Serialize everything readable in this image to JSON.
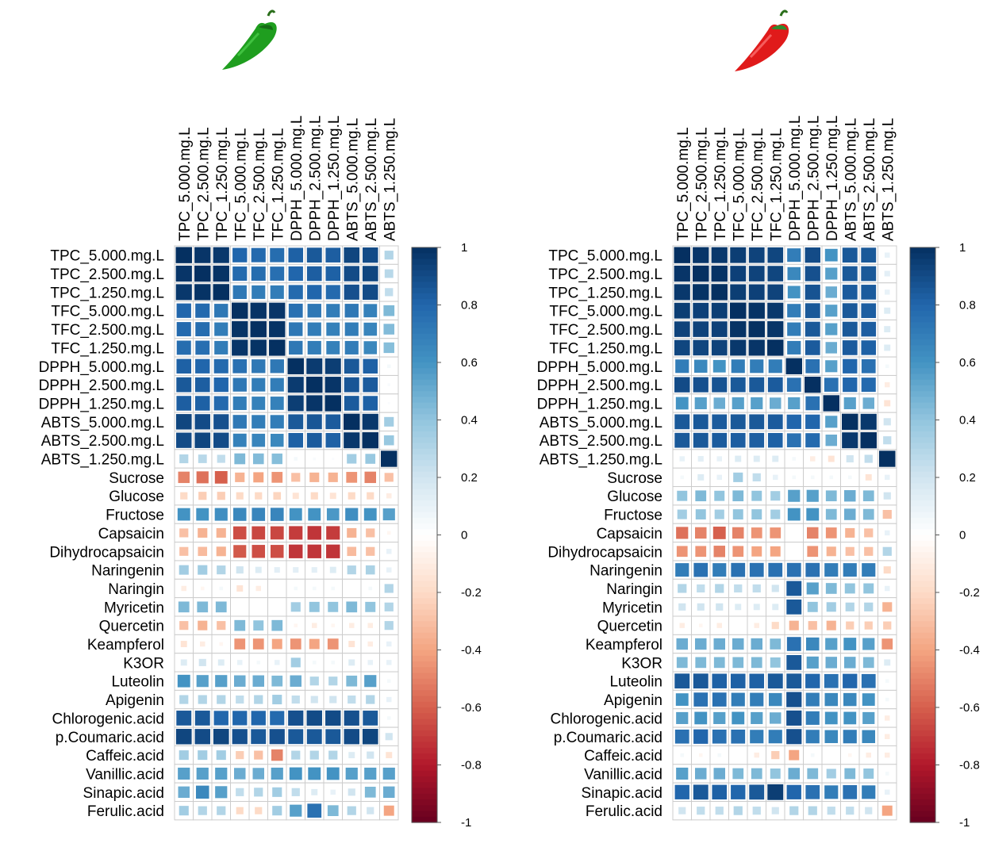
{
  "colors": {
    "scale": [
      "#67001F",
      "#B2182B",
      "#D6604D",
      "#F4A582",
      "#FDDBC7",
      "#FFFFFF",
      "#D1E5F0",
      "#92C5DE",
      "#4393C3",
      "#2166AC",
      "#053061"
    ],
    "green_pepper": "#1f9e1f",
    "red_pepper": "#e01a1a",
    "grid": "#cccccc"
  },
  "icons": [
    "green-pepper-icon",
    "red-pepper-icon"
  ],
  "chart_data": [
    {
      "type": "heatmap",
      "columns": [
        "TPC_5.000.mg.L",
        "TPC_2.500.mg.L",
        "TPC_1.250.mg.L",
        "TFC_5.000.mg.L",
        "TFC_2.500.mg.L",
        "TFC_1.250.mg.L",
        "DPPH_5.000.mg.L",
        "DPPH_2.500.mg.L",
        "DPPH_1.250.mg.L",
        "ABTS_5.000.mg.L",
        "ABTS_2.500.mg.L",
        "ABTS_1.250.mg.L"
      ],
      "rows": [
        "TPC_5.000.mg.L",
        "TPC_2.500.mg.L",
        "TPC_1.250.mg.L",
        "TFC_5.000.mg.L",
        "TFC_2.500.mg.L",
        "TFC_1.250.mg.L",
        "DPPH_5.000.mg.L",
        "DPPH_2.500.mg.L",
        "DPPH_1.250.mg.L",
        "ABTS_5.000.mg.L",
        "ABTS_2.500.mg.L",
        "ABTS_1.250.mg.L",
        "Sucrose",
        "Glucose",
        "Fructose",
        "Capsaicin",
        "Dihydrocapsaicin",
        "Naringenin",
        "Naringin",
        "Myricetin",
        "Quercetin",
        "Keampferol",
        "K3OR",
        "Luteolin",
        "Apigenin",
        "Chlorogenic.acid",
        "p.Coumaric.acid",
        "Caffeic.acid",
        "Vanillic.acid",
        "Sinapic.acid",
        "Ferulic.acid"
      ],
      "values": [
        [
          1,
          0.98,
          0.97,
          0.8,
          0.78,
          0.77,
          0.82,
          0.85,
          0.83,
          0.92,
          0.9,
          0.3
        ],
        [
          0.98,
          1,
          0.99,
          0.78,
          0.77,
          0.76,
          0.8,
          0.83,
          0.82,
          0.9,
          0.92,
          0.28
        ],
        [
          0.97,
          0.99,
          1,
          0.72,
          0.7,
          0.7,
          0.78,
          0.8,
          0.78,
          0.88,
          0.9,
          0.25
        ],
        [
          0.8,
          0.78,
          0.72,
          1,
          0.99,
          0.98,
          0.75,
          0.72,
          0.7,
          0.72,
          0.68,
          0.45
        ],
        [
          0.78,
          0.77,
          0.7,
          0.99,
          1,
          0.99,
          0.72,
          0.7,
          0.68,
          0.7,
          0.66,
          0.44
        ],
        [
          0.77,
          0.76,
          0.7,
          0.98,
          0.99,
          1,
          0.72,
          0.7,
          0.68,
          0.7,
          0.65,
          0.43
        ],
        [
          0.82,
          0.8,
          0.78,
          0.75,
          0.72,
          0.72,
          1,
          0.96,
          0.95,
          0.85,
          0.82,
          0.05
        ],
        [
          0.85,
          0.83,
          0.8,
          0.72,
          0.7,
          0.7,
          0.96,
          1,
          0.98,
          0.86,
          0.84,
          0.03
        ],
        [
          0.83,
          0.82,
          0.78,
          0.7,
          0.68,
          0.68,
          0.95,
          0.98,
          1,
          0.84,
          0.82,
          0.02
        ],
        [
          0.92,
          0.9,
          0.88,
          0.72,
          0.7,
          0.7,
          0.85,
          0.86,
          0.84,
          1,
          0.97,
          0.35
        ],
        [
          0.9,
          0.92,
          0.9,
          0.68,
          0.66,
          0.65,
          0.82,
          0.84,
          0.82,
          0.97,
          1,
          0.38
        ],
        [
          0.3,
          0.28,
          0.25,
          0.45,
          0.44,
          0.43,
          0.05,
          0.03,
          0.02,
          0.35,
          0.38,
          1
        ],
        [
          -0.5,
          -0.55,
          -0.6,
          -0.35,
          -0.4,
          -0.45,
          -0.3,
          -0.35,
          -0.35,
          -0.45,
          -0.5,
          -0.3
        ],
        [
          -0.2,
          -0.25,
          -0.25,
          -0.2,
          -0.2,
          -0.22,
          -0.15,
          -0.2,
          -0.15,
          -0.2,
          -0.2,
          -0.1
        ],
        [
          0.6,
          0.6,
          0.62,
          0.65,
          0.66,
          0.66,
          0.6,
          0.6,
          0.58,
          0.62,
          0.6,
          0.55
        ],
        [
          -0.3,
          -0.35,
          -0.35,
          -0.65,
          -0.67,
          -0.67,
          -0.7,
          -0.72,
          -0.7,
          -0.35,
          -0.3,
          -0.05
        ],
        [
          -0.3,
          -0.32,
          -0.35,
          -0.62,
          -0.65,
          -0.65,
          -0.72,
          -0.72,
          -0.72,
          -0.32,
          -0.3,
          0.1
        ],
        [
          0.35,
          0.35,
          0.3,
          0.2,
          0.15,
          0.12,
          0.12,
          0.12,
          0.15,
          0.3,
          0.32,
          0.1
        ],
        [
          -0.1,
          -0.05,
          0.05,
          -0.15,
          -0.1,
          0.0,
          0.05,
          0.05,
          0.05,
          0.0,
          0.05,
          0.3
        ],
        [
          0.45,
          0.45,
          0.45,
          0.0,
          0.0,
          0.0,
          0.35,
          0.4,
          0.4,
          0.45,
          0.4,
          0.3
        ],
        [
          -0.3,
          -0.35,
          -0.3,
          0.45,
          0.4,
          0.45,
          -0.05,
          -0.1,
          -0.05,
          -0.1,
          -0.1,
          0.3
        ],
        [
          -0.15,
          -0.1,
          -0.05,
          -0.45,
          -0.45,
          -0.4,
          -0.45,
          -0.4,
          -0.45,
          -0.15,
          -0.1,
          0.1
        ],
        [
          0.15,
          0.2,
          0.15,
          0.1,
          0.05,
          0.1,
          0.35,
          0.05,
          0.05,
          0.15,
          0.1,
          0.1
        ],
        [
          0.6,
          0.55,
          0.55,
          0.5,
          0.5,
          0.45,
          0.5,
          0.3,
          0.3,
          0.45,
          0.55,
          0.05
        ],
        [
          0.3,
          0.3,
          0.3,
          0.25,
          0.3,
          0.35,
          0.25,
          0.2,
          0.2,
          0.25,
          0.3,
          0.1
        ],
        [
          0.85,
          0.85,
          0.8,
          0.8,
          0.8,
          0.78,
          0.88,
          0.9,
          0.9,
          0.88,
          0.85,
          0.05
        ],
        [
          0.92,
          0.9,
          0.92,
          0.88,
          0.85,
          0.88,
          0.85,
          0.85,
          0.85,
          0.9,
          0.92,
          0.2
        ],
        [
          0.35,
          0.35,
          0.35,
          -0.25,
          -0.3,
          -0.5,
          0.3,
          0.3,
          0.3,
          0.15,
          0.2,
          -0.15
        ],
        [
          0.55,
          0.55,
          0.55,
          0.5,
          0.5,
          0.55,
          0.6,
          0.6,
          0.6,
          0.55,
          0.55,
          0.55
        ],
        [
          0.5,
          0.65,
          0.55,
          0.25,
          0.3,
          0.35,
          0.25,
          0.15,
          0.1,
          0.2,
          0.45,
          0.5
        ],
        [
          0.35,
          0.3,
          0.3,
          -0.2,
          -0.2,
          0.35,
          0.55,
          0.75,
          0.45,
          0.3,
          0.2,
          -0.4
        ]
      ]
    },
    {
      "type": "heatmap",
      "columns": [
        "TPC_5.000.mg.L",
        "TPC_2.500.mg.L",
        "TPC_1.250.mg.L",
        "TFC_5.000.mg.L",
        "TFC_2.500.mg.L",
        "TFC_1.250.mg.L",
        "DPPH_5.000.mg.L",
        "DPPH_2.500.mg.L",
        "DPPH_1.250.mg.L",
        "ABTS_5.000.mg.L",
        "ABTS_2.500.mg.L",
        "ABTS_1.250.mg.L"
      ],
      "rows": [
        "TPC_5.000.mg.L",
        "TPC_2.500.mg.L",
        "TPC_1.250.mg.L",
        "TFC_5.000.mg.L",
        "TFC_2.500.mg.L",
        "TFC_1.250.mg.L",
        "DPPH_5.000.mg.L",
        "DPPH_2.500.mg.L",
        "DPPH_1.250.mg.L",
        "ABTS_5.000.mg.L",
        "ABTS_2.500.mg.L",
        "ABTS_1.250.mg.L",
        "Sucrose",
        "Glucose",
        "Fructose",
        "Capsaicin",
        "Dihydrocapsaicin",
        "Naringenin",
        "Naringin",
        "Myricetin",
        "Quercetin",
        "Keampferol",
        "K3OR",
        "Luteolin",
        "Apigenin",
        "Chlorogenic.acid",
        "p.Coumaric.acid",
        "Caffeic.acid",
        "Vanillic.acid",
        "Sinapic.acid",
        "Ferulic.acid"
      ],
      "values": [
        [
          1,
          0.98,
          0.97,
          0.95,
          0.93,
          0.92,
          0.7,
          0.9,
          0.6,
          0.85,
          0.85,
          0.1
        ],
        [
          0.98,
          1,
          0.99,
          0.94,
          0.93,
          0.92,
          0.65,
          0.88,
          0.55,
          0.85,
          0.85,
          0.12
        ],
        [
          0.97,
          0.99,
          1,
          0.95,
          0.94,
          0.93,
          0.6,
          0.87,
          0.5,
          0.84,
          0.84,
          0.1
        ],
        [
          0.95,
          0.94,
          0.95,
          1,
          0.99,
          0.97,
          0.7,
          0.85,
          0.55,
          0.85,
          0.83,
          0.15
        ],
        [
          0.93,
          0.93,
          0.94,
          0.99,
          1,
          0.98,
          0.7,
          0.85,
          0.55,
          0.85,
          0.83,
          0.15
        ],
        [
          0.92,
          0.92,
          0.93,
          0.97,
          0.98,
          1,
          0.7,
          0.84,
          0.5,
          0.84,
          0.82,
          0.15
        ],
        [
          0.7,
          0.65,
          0.6,
          0.7,
          0.7,
          0.7,
          1,
          0.75,
          0.55,
          0.8,
          0.75,
          0.05
        ],
        [
          0.9,
          0.88,
          0.87,
          0.85,
          0.85,
          0.84,
          0.75,
          1,
          0.75,
          0.8,
          0.78,
          -0.1
        ],
        [
          0.6,
          0.55,
          0.5,
          0.55,
          0.55,
          0.5,
          0.55,
          0.75,
          1,
          0.55,
          0.5,
          -0.15
        ],
        [
          0.85,
          0.85,
          0.84,
          0.85,
          0.85,
          0.84,
          0.8,
          0.8,
          0.55,
          1,
          0.97,
          0.2
        ],
        [
          0.85,
          0.85,
          0.84,
          0.83,
          0.83,
          0.82,
          0.75,
          0.78,
          0.5,
          0.97,
          1,
          0.25
        ],
        [
          0.1,
          0.12,
          0.1,
          0.15,
          0.15,
          0.15,
          0.05,
          -0.1,
          -0.15,
          0.2,
          0.25,
          1
        ],
        [
          0.05,
          0.15,
          0.1,
          0.35,
          0.25,
          0.1,
          0.05,
          0.05,
          0.05,
          0.05,
          -0.15,
          0.1
        ],
        [
          0.4,
          0.45,
          0.4,
          0.45,
          0.4,
          0.35,
          0.55,
          0.55,
          0.45,
          0.5,
          0.45,
          0.2
        ],
        [
          0.35,
          0.4,
          0.35,
          0.4,
          0.4,
          0.35,
          0.6,
          0.6,
          0.45,
          0.5,
          0.45,
          -0.3
        ],
        [
          -0.55,
          -0.5,
          -0.6,
          -0.5,
          -0.45,
          -0.45,
          0.0,
          -0.5,
          -0.45,
          -0.35,
          -0.3,
          0.1
        ],
        [
          -0.45,
          -0.45,
          -0.5,
          -0.45,
          -0.4,
          -0.4,
          0.0,
          -0.45,
          -0.35,
          -0.3,
          -0.3,
          0.3
        ],
        [
          0.7,
          0.75,
          0.7,
          0.75,
          0.75,
          0.75,
          0.75,
          0.75,
          0.7,
          0.7,
          0.7,
          -0.2
        ],
        [
          0.3,
          0.25,
          0.3,
          0.25,
          0.25,
          0.2,
          0.85,
          0.55,
          0.45,
          0.4,
          0.4,
          0.1
        ],
        [
          0.2,
          0.2,
          0.2,
          0.15,
          0.15,
          0.15,
          0.85,
          0.4,
          0.35,
          0.3,
          0.3,
          -0.35
        ],
        [
          -0.1,
          -0.05,
          -0.1,
          0.0,
          -0.1,
          -0.2,
          -0.35,
          -0.3,
          -0.35,
          -0.25,
          -0.25,
          -0.25
        ],
        [
          0.5,
          0.5,
          0.5,
          0.5,
          0.5,
          0.45,
          0.75,
          0.65,
          0.55,
          0.6,
          0.55,
          -0.45
        ],
        [
          0.45,
          0.45,
          0.45,
          0.45,
          0.45,
          0.4,
          0.85,
          0.55,
          0.5,
          0.5,
          0.45,
          0.15
        ],
        [
          0.85,
          0.85,
          0.82,
          0.82,
          0.82,
          0.85,
          0.85,
          0.8,
          0.75,
          0.8,
          0.75,
          0.05
        ],
        [
          0.6,
          0.75,
          0.75,
          0.7,
          0.7,
          0.65,
          0.88,
          0.7,
          0.65,
          0.65,
          0.6,
          0.05
        ],
        [
          0.55,
          0.6,
          0.55,
          0.6,
          0.55,
          0.5,
          0.88,
          0.7,
          0.6,
          0.6,
          0.55,
          -0.1
        ],
        [
          0.75,
          0.8,
          0.75,
          0.75,
          0.7,
          0.7,
          0.88,
          0.7,
          0.65,
          0.7,
          0.65,
          -0.1
        ],
        [
          0.05,
          -0.05,
          0.05,
          0.0,
          -0.1,
          -0.25,
          -0.4,
          0.05,
          0.0,
          -0.05,
          -0.1,
          -0.1
        ],
        [
          0.55,
          0.5,
          0.5,
          0.45,
          0.45,
          0.4,
          0.5,
          0.45,
          0.35,
          0.45,
          0.4,
          0.05
        ],
        [
          0.8,
          0.85,
          0.82,
          0.8,
          0.85,
          0.95,
          0.8,
          0.75,
          0.7,
          0.75,
          0.7,
          0.1
        ],
        [
          0.2,
          0.25,
          0.25,
          0.3,
          0.25,
          0.2,
          0.3,
          0.3,
          0.25,
          0.25,
          0.2,
          -0.4
        ]
      ]
    }
  ],
  "colorbar": {
    "ticks": [
      "1",
      "0.8",
      "0.6",
      "0.4",
      "0.2",
      "0",
      "-0.2",
      "-0.4",
      "-0.6",
      "-0.8",
      "-1"
    ]
  }
}
